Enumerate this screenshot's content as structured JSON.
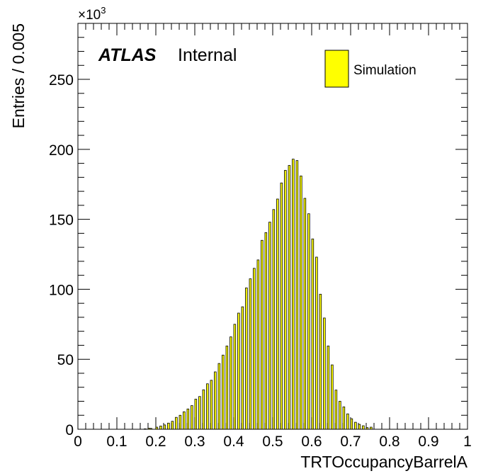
{
  "chart_data": {
    "type": "bar",
    "histogram": true,
    "bin_width": 0.005,
    "xlabel": "TRTOccupancyBarrelA",
    "ylabel": "Entries / 0.005",
    "y_multiplier": "×10",
    "y_multiplier_exp": "3",
    "xlim": [
      0,
      1
    ],
    "ylim": [
      0,
      290
    ],
    "x_ticks": [
      "0",
      "0.1",
      "0.2",
      "0.3",
      "0.4",
      "0.5",
      "0.6",
      "0.7",
      "0.8",
      "0.9",
      "1"
    ],
    "y_ticks": [
      "0",
      "50",
      "100",
      "150",
      "200",
      "250"
    ],
    "atlas_label": "ATLAS",
    "atlas_sublabel": "Internal",
    "legend_placement": "top-right",
    "series": [
      {
        "name": "Simulation",
        "color": "#ffff00",
        "bins": [
          {
            "x": 0.17,
            "y": 0.3
          },
          {
            "x": 0.18,
            "y": 0.7
          },
          {
            "x": 0.185,
            "y": 0.6
          },
          {
            "x": 0.2,
            "y": 1.5
          },
          {
            "x": 0.21,
            "y": 2.3
          },
          {
            "x": 0.22,
            "y": 3.1
          },
          {
            "x": 0.23,
            "y": 4.4
          },
          {
            "x": 0.24,
            "y": 5.7
          },
          {
            "x": 0.25,
            "y": 8.5
          },
          {
            "x": 0.26,
            "y": 10.0
          },
          {
            "x": 0.27,
            "y": 12.5
          },
          {
            "x": 0.28,
            "y": 14.5
          },
          {
            "x": 0.29,
            "y": 16.9
          },
          {
            "x": 0.3,
            "y": 21.5
          },
          {
            "x": 0.31,
            "y": 23.4
          },
          {
            "x": 0.32,
            "y": 28.2
          },
          {
            "x": 0.33,
            "y": 32.5
          },
          {
            "x": 0.34,
            "y": 35.0
          },
          {
            "x": 0.35,
            "y": 41.0
          },
          {
            "x": 0.36,
            "y": 47.0
          },
          {
            "x": 0.37,
            "y": 53.0
          },
          {
            "x": 0.38,
            "y": 59.5
          },
          {
            "x": 0.39,
            "y": 66.0
          },
          {
            "x": 0.4,
            "y": 75.0
          },
          {
            "x": 0.41,
            "y": 83.0
          },
          {
            "x": 0.42,
            "y": 87.5
          },
          {
            "x": 0.43,
            "y": 101.0
          },
          {
            "x": 0.44,
            "y": 107.5
          },
          {
            "x": 0.45,
            "y": 115.0
          },
          {
            "x": 0.46,
            "y": 121.0
          },
          {
            "x": 0.47,
            "y": 135.0
          },
          {
            "x": 0.48,
            "y": 140.5
          },
          {
            "x": 0.49,
            "y": 148.0
          },
          {
            "x": 0.5,
            "y": 157.0
          },
          {
            "x": 0.51,
            "y": 164.5
          },
          {
            "x": 0.52,
            "y": 176.0
          },
          {
            "x": 0.53,
            "y": 185.0
          },
          {
            "x": 0.54,
            "y": 188.5
          },
          {
            "x": 0.55,
            "y": 193.0
          },
          {
            "x": 0.56,
            "y": 192.0
          },
          {
            "x": 0.57,
            "y": 181.0
          },
          {
            "x": 0.58,
            "y": 165.0
          },
          {
            "x": 0.59,
            "y": 154.0
          },
          {
            "x": 0.6,
            "y": 136.0
          },
          {
            "x": 0.61,
            "y": 123.0
          },
          {
            "x": 0.62,
            "y": 96.5
          },
          {
            "x": 0.63,
            "y": 79.5
          },
          {
            "x": 0.64,
            "y": 59.5
          },
          {
            "x": 0.65,
            "y": 46.0
          },
          {
            "x": 0.66,
            "y": 28.0
          },
          {
            "x": 0.67,
            "y": 20.0
          },
          {
            "x": 0.68,
            "y": 16.0
          },
          {
            "x": 0.69,
            "y": 11.0
          },
          {
            "x": 0.7,
            "y": 7.5
          },
          {
            "x": 0.71,
            "y": 5.0
          },
          {
            "x": 0.72,
            "y": 3.5
          },
          {
            "x": 0.73,
            "y": 2.5
          },
          {
            "x": 0.74,
            "y": 1.2
          },
          {
            "x": 0.75,
            "y": 1.5
          }
        ]
      }
    ]
  }
}
